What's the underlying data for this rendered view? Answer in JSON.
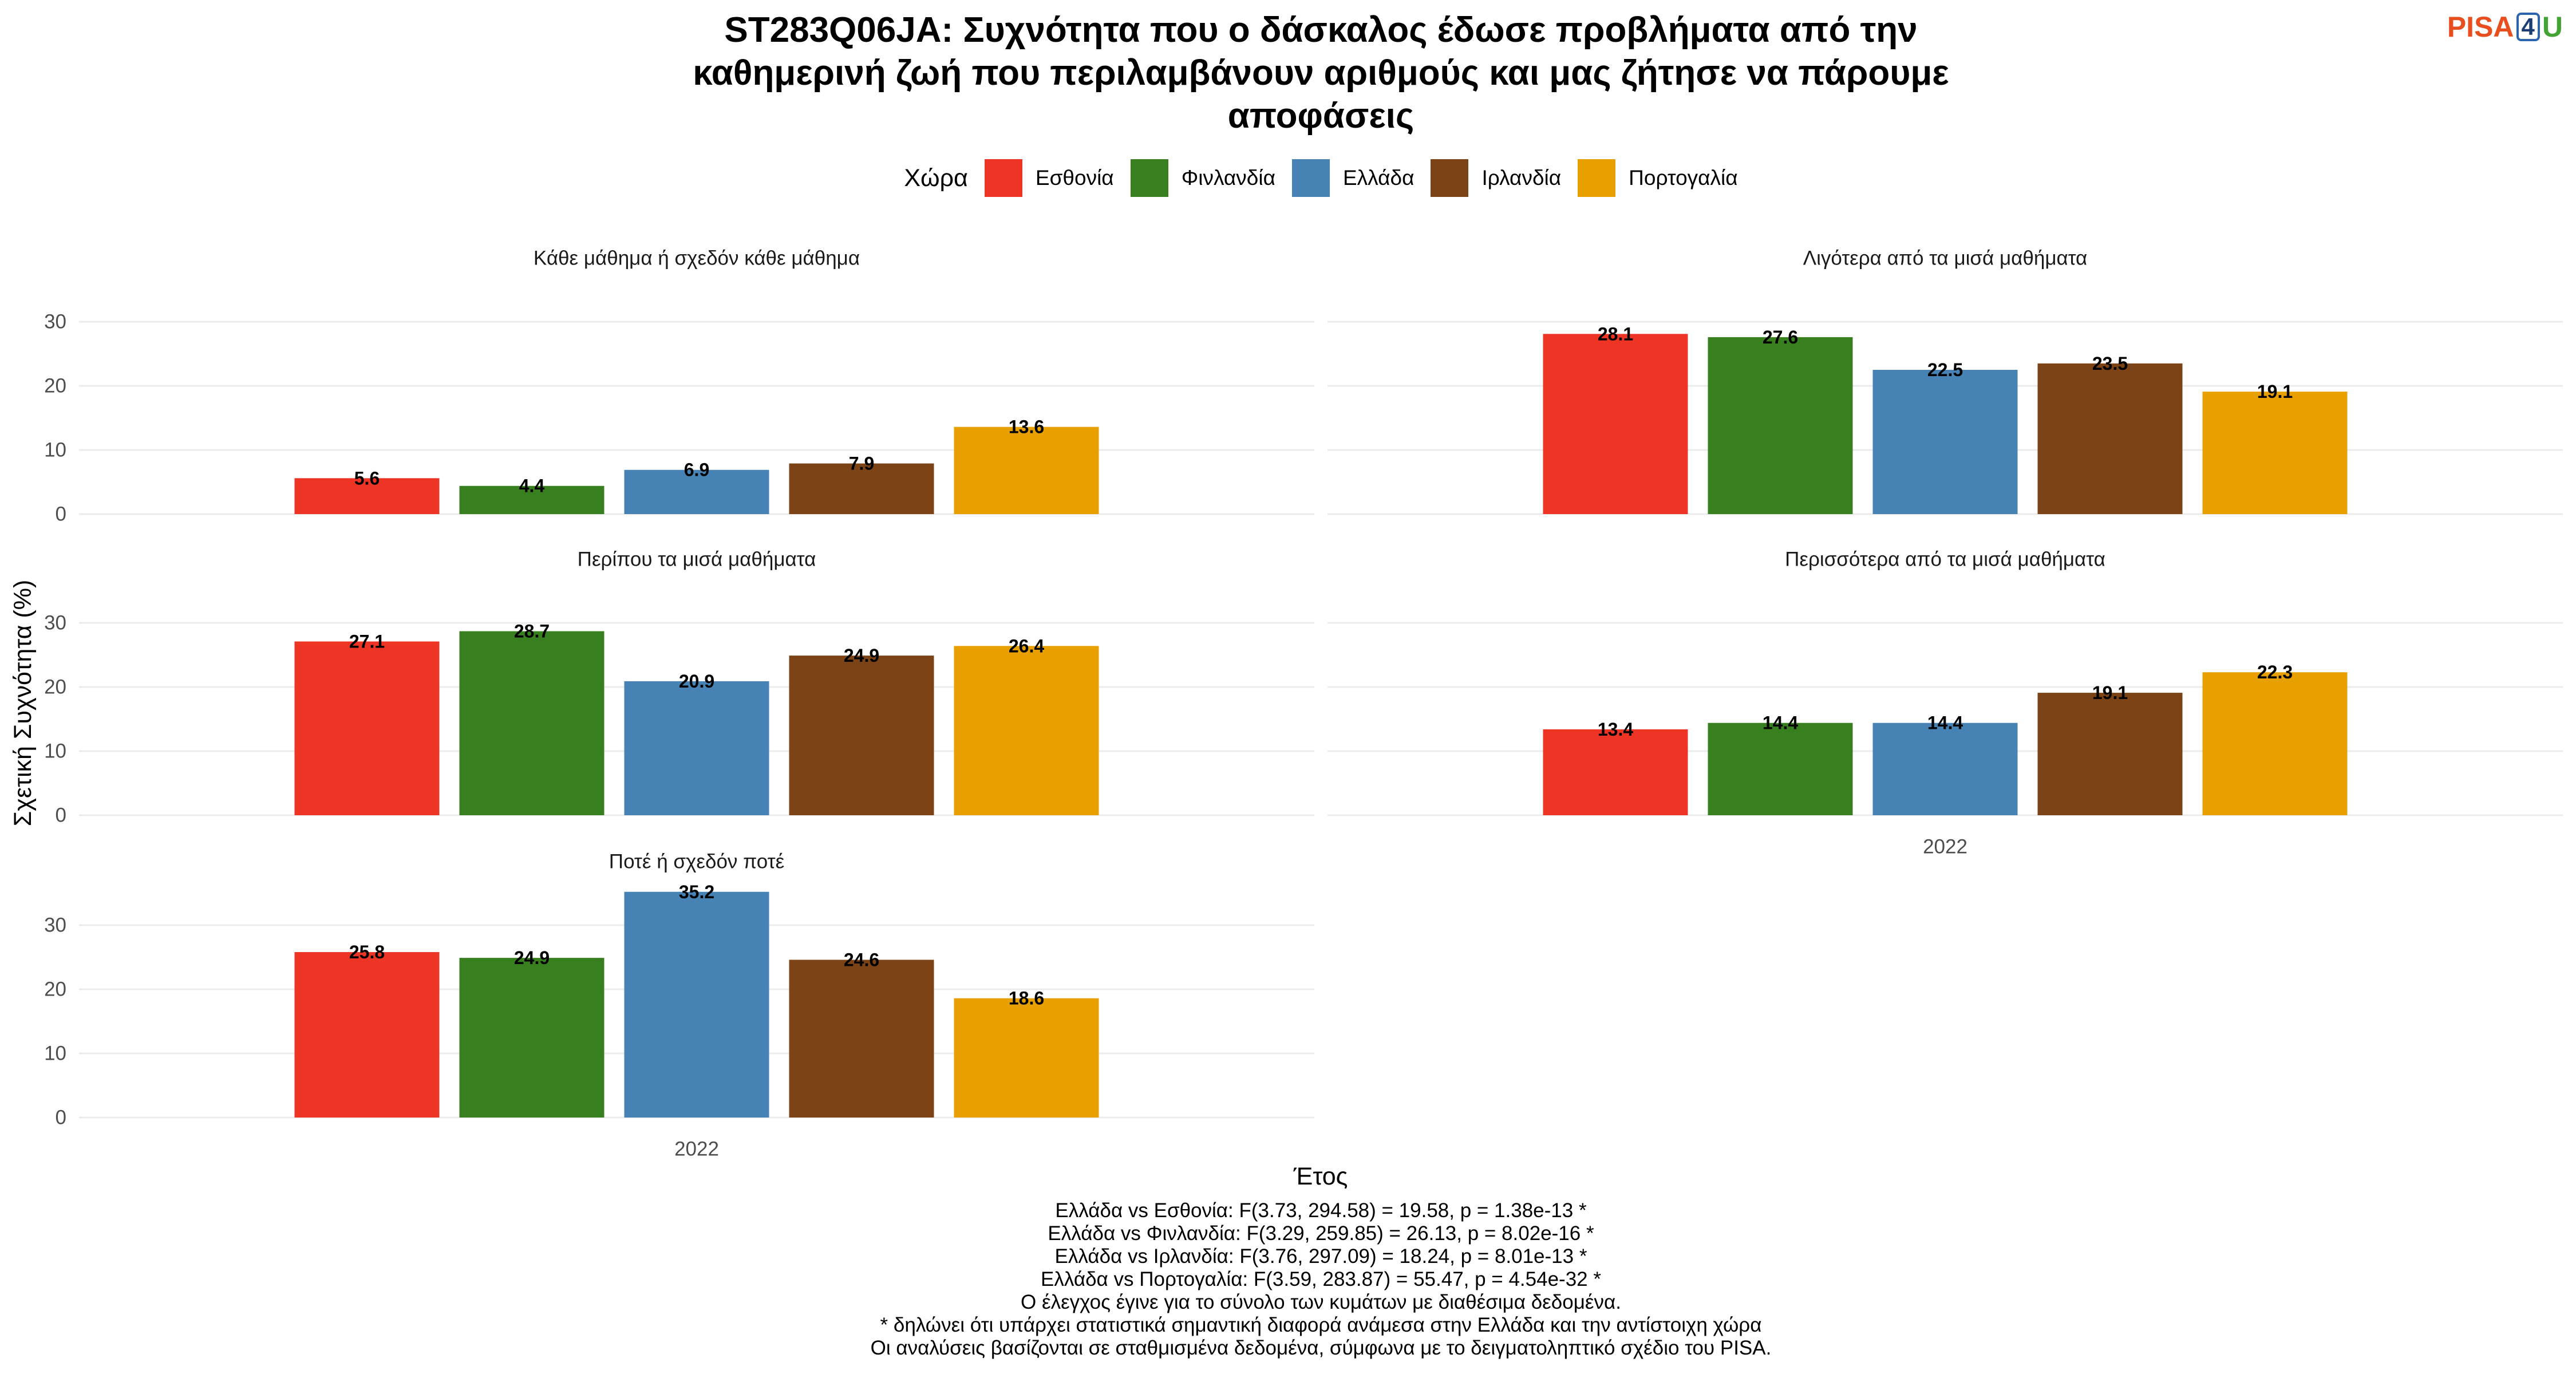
{
  "logo": {
    "part1": "PISA",
    "part2": "4",
    "part3": "U"
  },
  "chart_data": {
    "type": "bar",
    "title": "ST283Q06JA: Συχνότητα που ο δάσκαλος έδωσε προβλήματα από την\nκαθημερινή ζωή που περιλαμβάνουν αριθμούς και μας ζήτησε να πάρουμε\nαποφάσεις",
    "xlabel": "Έτος",
    "ylabel": "Σχετική Συχνότητα (%)",
    "legend": {
      "title": "Χώρα",
      "position": "top"
    },
    "categories": [
      "2022"
    ],
    "ylim": [
      0,
      37
    ],
    "yticks": [
      0,
      10,
      20,
      30
    ],
    "grid": true,
    "series": [
      {
        "name": "Εσθονία",
        "color": "#EE3424"
      },
      {
        "name": "Φινλανδία",
        "color": "#38801F"
      },
      {
        "name": "Ελλάδα",
        "color": "#4682B4"
      },
      {
        "name": "Ιρλανδία",
        "color": "#7B4316"
      },
      {
        "name": "Πορτογαλία",
        "color": "#E8A000"
      }
    ],
    "panels": [
      {
        "title": "Κάθε μάθημα ή σχεδόν κάθε μάθημα",
        "values": [
          5.6,
          4.4,
          6.9,
          7.9,
          13.6
        ]
      },
      {
        "title": "Λιγότερα από τα μισά μαθήματα",
        "values": [
          28.1,
          27.6,
          22.5,
          23.5,
          19.1
        ]
      },
      {
        "title": "Περίπου τα μισά μαθήματα",
        "values": [
          27.1,
          28.7,
          20.9,
          24.9,
          26.4
        ]
      },
      {
        "title": "Περισσότερα από τα μισά μαθήματα",
        "values": [
          13.4,
          14.4,
          14.4,
          19.1,
          22.3
        ]
      },
      {
        "title": "Ποτέ ή σχεδόν ποτέ",
        "values": [
          25.8,
          24.9,
          35.2,
          24.6,
          18.6
        ]
      }
    ],
    "caption": [
      "Ελλάδα vs Εσθονία: F(3.73, 294.58) = 19.58, p = 1.38e-13 *",
      "Ελλάδα vs Φινλανδία: F(3.29, 259.85) = 26.13, p = 8.02e-16 *",
      "Ελλάδα vs Ιρλανδία: F(3.76, 297.09) = 18.24, p = 8.01e-13 *",
      "Ελλάδα vs Πορτογαλία: F(3.59, 283.87) = 55.47, p = 4.54e-32 *",
      "Ο έλεγχος έγινε για το σύνολο των κυμάτων με διαθέσιμα δεδομένα.",
      "* δηλώνει ότι υπάρχει στατιστικά σημαντική διαφορά ανάμεσα στην Ελλάδα και την αντίστοιχη χώρα",
      "Οι αναλύσεις βασίζονται σε σταθμισμένα δεδομένα, σύμφωνα με το δειγματοληπτικό σχέδιο του PISA."
    ]
  }
}
